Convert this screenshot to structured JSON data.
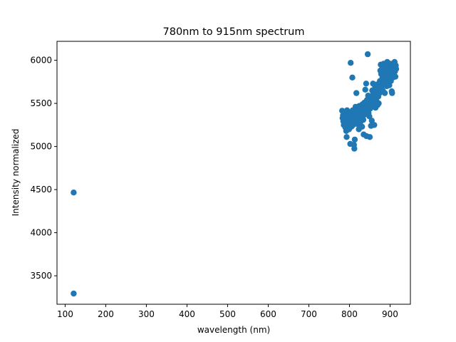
{
  "chart_data": {
    "type": "scatter",
    "title": "780nm to 915nm spectrum",
    "xlabel": "wavelength (nm)",
    "ylabel": "Intensity normalized",
    "xlim": [
      80,
      950
    ],
    "ylim": [
      3170,
      6220
    ],
    "xticks": [
      100,
      200,
      300,
      400,
      500,
      600,
      700,
      800,
      900
    ],
    "yticks": [
      3500,
      4000,
      4500,
      5000,
      5500,
      6000
    ],
    "grid": false,
    "legend": "none",
    "marker_color": "#1f77b4",
    "points": [
      [
        121,
        4466
      ],
      [
        121,
        3294
      ],
      [
        782,
        5415
      ],
      [
        783,
        5330
      ],
      [
        784,
        5360
      ],
      [
        785,
        5290
      ],
      [
        786,
        5250
      ],
      [
        788,
        5400
      ],
      [
        789,
        5310
      ],
      [
        790,
        5220
      ],
      [
        791,
        5370
      ],
      [
        792,
        5180
      ],
      [
        793,
        5110
      ],
      [
        794,
        5420
      ],
      [
        795,
        5290
      ],
      [
        796,
        5350
      ],
      [
        797,
        5240
      ],
      [
        798,
        5390
      ],
      [
        799,
        5200
      ],
      [
        800,
        5320
      ],
      [
        801,
        5270
      ],
      [
        802,
        5030
      ],
      [
        803,
        5970
      ],
      [
        804,
        5380
      ],
      [
        805,
        5230
      ],
      [
        806,
        5300
      ],
      [
        807,
        5800
      ],
      [
        808,
        5420
      ],
      [
        809,
        5250
      ],
      [
        810,
        5350
      ],
      [
        811,
        5020
      ],
      [
        812,
        4975
      ],
      [
        813,
        5080
      ],
      [
        814,
        5380
      ],
      [
        815,
        5460
      ],
      [
        816,
        5290
      ],
      [
        817,
        5620
      ],
      [
        818,
        5410
      ],
      [
        819,
        5330
      ],
      [
        820,
        5260
      ],
      [
        821,
        5440
      ],
      [
        822,
        5370
      ],
      [
        823,
        5200
      ],
      [
        824,
        5470
      ],
      [
        825,
        5320
      ],
      [
        826,
        5410
      ],
      [
        827,
        5380
      ],
      [
        828,
        5290
      ],
      [
        829,
        5450
      ],
      [
        830,
        5350
      ],
      [
        831,
        5230
      ],
      [
        832,
        5490
      ],
      [
        833,
        5400
      ],
      [
        834,
        5310
      ],
      [
        835,
        5140
      ],
      [
        836,
        5420
      ],
      [
        837,
        5510
      ],
      [
        838,
        5370
      ],
      [
        839,
        5660
      ],
      [
        840,
        5450
      ],
      [
        841,
        5730
      ],
      [
        842,
        5120
      ],
      [
        843,
        5540
      ],
      [
        844,
        5480
      ],
      [
        845,
        6070
      ],
      [
        846,
        5590
      ],
      [
        847,
        5390
      ],
      [
        848,
        5520
      ],
      [
        849,
        5350
      ],
      [
        850,
        5110
      ],
      [
        851,
        5440
      ],
      [
        852,
        5580
      ],
      [
        853,
        5240
      ],
      [
        854,
        5460
      ],
      [
        855,
        5300
      ],
      [
        856,
        5650
      ],
      [
        857,
        5560
      ],
      [
        858,
        5730
      ],
      [
        859,
        5620
      ],
      [
        860,
        5500
      ],
      [
        861,
        5250
      ],
      [
        862,
        5590
      ],
      [
        863,
        5700
      ],
      [
        864,
        5450
      ],
      [
        865,
        5680
      ],
      [
        866,
        5540
      ],
      [
        867,
        5610
      ],
      [
        868,
        5720
      ],
      [
        869,
        5480
      ],
      [
        870,
        5660
      ],
      [
        871,
        5580
      ],
      [
        872,
        5500
      ],
      [
        873,
        5690
      ],
      [
        874,
        5620
      ],
      [
        875,
        5760
      ],
      [
        876,
        5880
      ],
      [
        877,
        5950
      ],
      [
        878,
        5840
      ],
      [
        879,
        5700
      ],
      [
        880,
        5900
      ],
      [
        881,
        5790
      ],
      [
        882,
        5650
      ],
      [
        883,
        5830
      ],
      [
        884,
        5960
      ],
      [
        885,
        5730
      ],
      [
        886,
        5870
      ],
      [
        887,
        5620
      ],
      [
        888,
        5810
      ],
      [
        889,
        5920
      ],
      [
        890,
        5760
      ],
      [
        891,
        5850
      ],
      [
        892,
        5700
      ],
      [
        893,
        5980
      ],
      [
        894,
        5880
      ],
      [
        895,
        5790
      ],
      [
        896,
        5930
      ],
      [
        897,
        5840
      ],
      [
        898,
        5710
      ],
      [
        899,
        5900
      ],
      [
        900,
        5820
      ],
      [
        901,
        5960
      ],
      [
        902,
        5760
      ],
      [
        903,
        5870
      ],
      [
        904,
        5640
      ],
      [
        905,
        5620
      ],
      [
        906,
        5950
      ],
      [
        907,
        5800
      ],
      [
        908,
        5900
      ],
      [
        909,
        5850
      ],
      [
        910,
        5930
      ],
      [
        911,
        5980
      ],
      [
        912,
        5870
      ],
      [
        913,
        5810
      ],
      [
        914,
        5940
      ],
      [
        915,
        5900
      ]
    ]
  }
}
